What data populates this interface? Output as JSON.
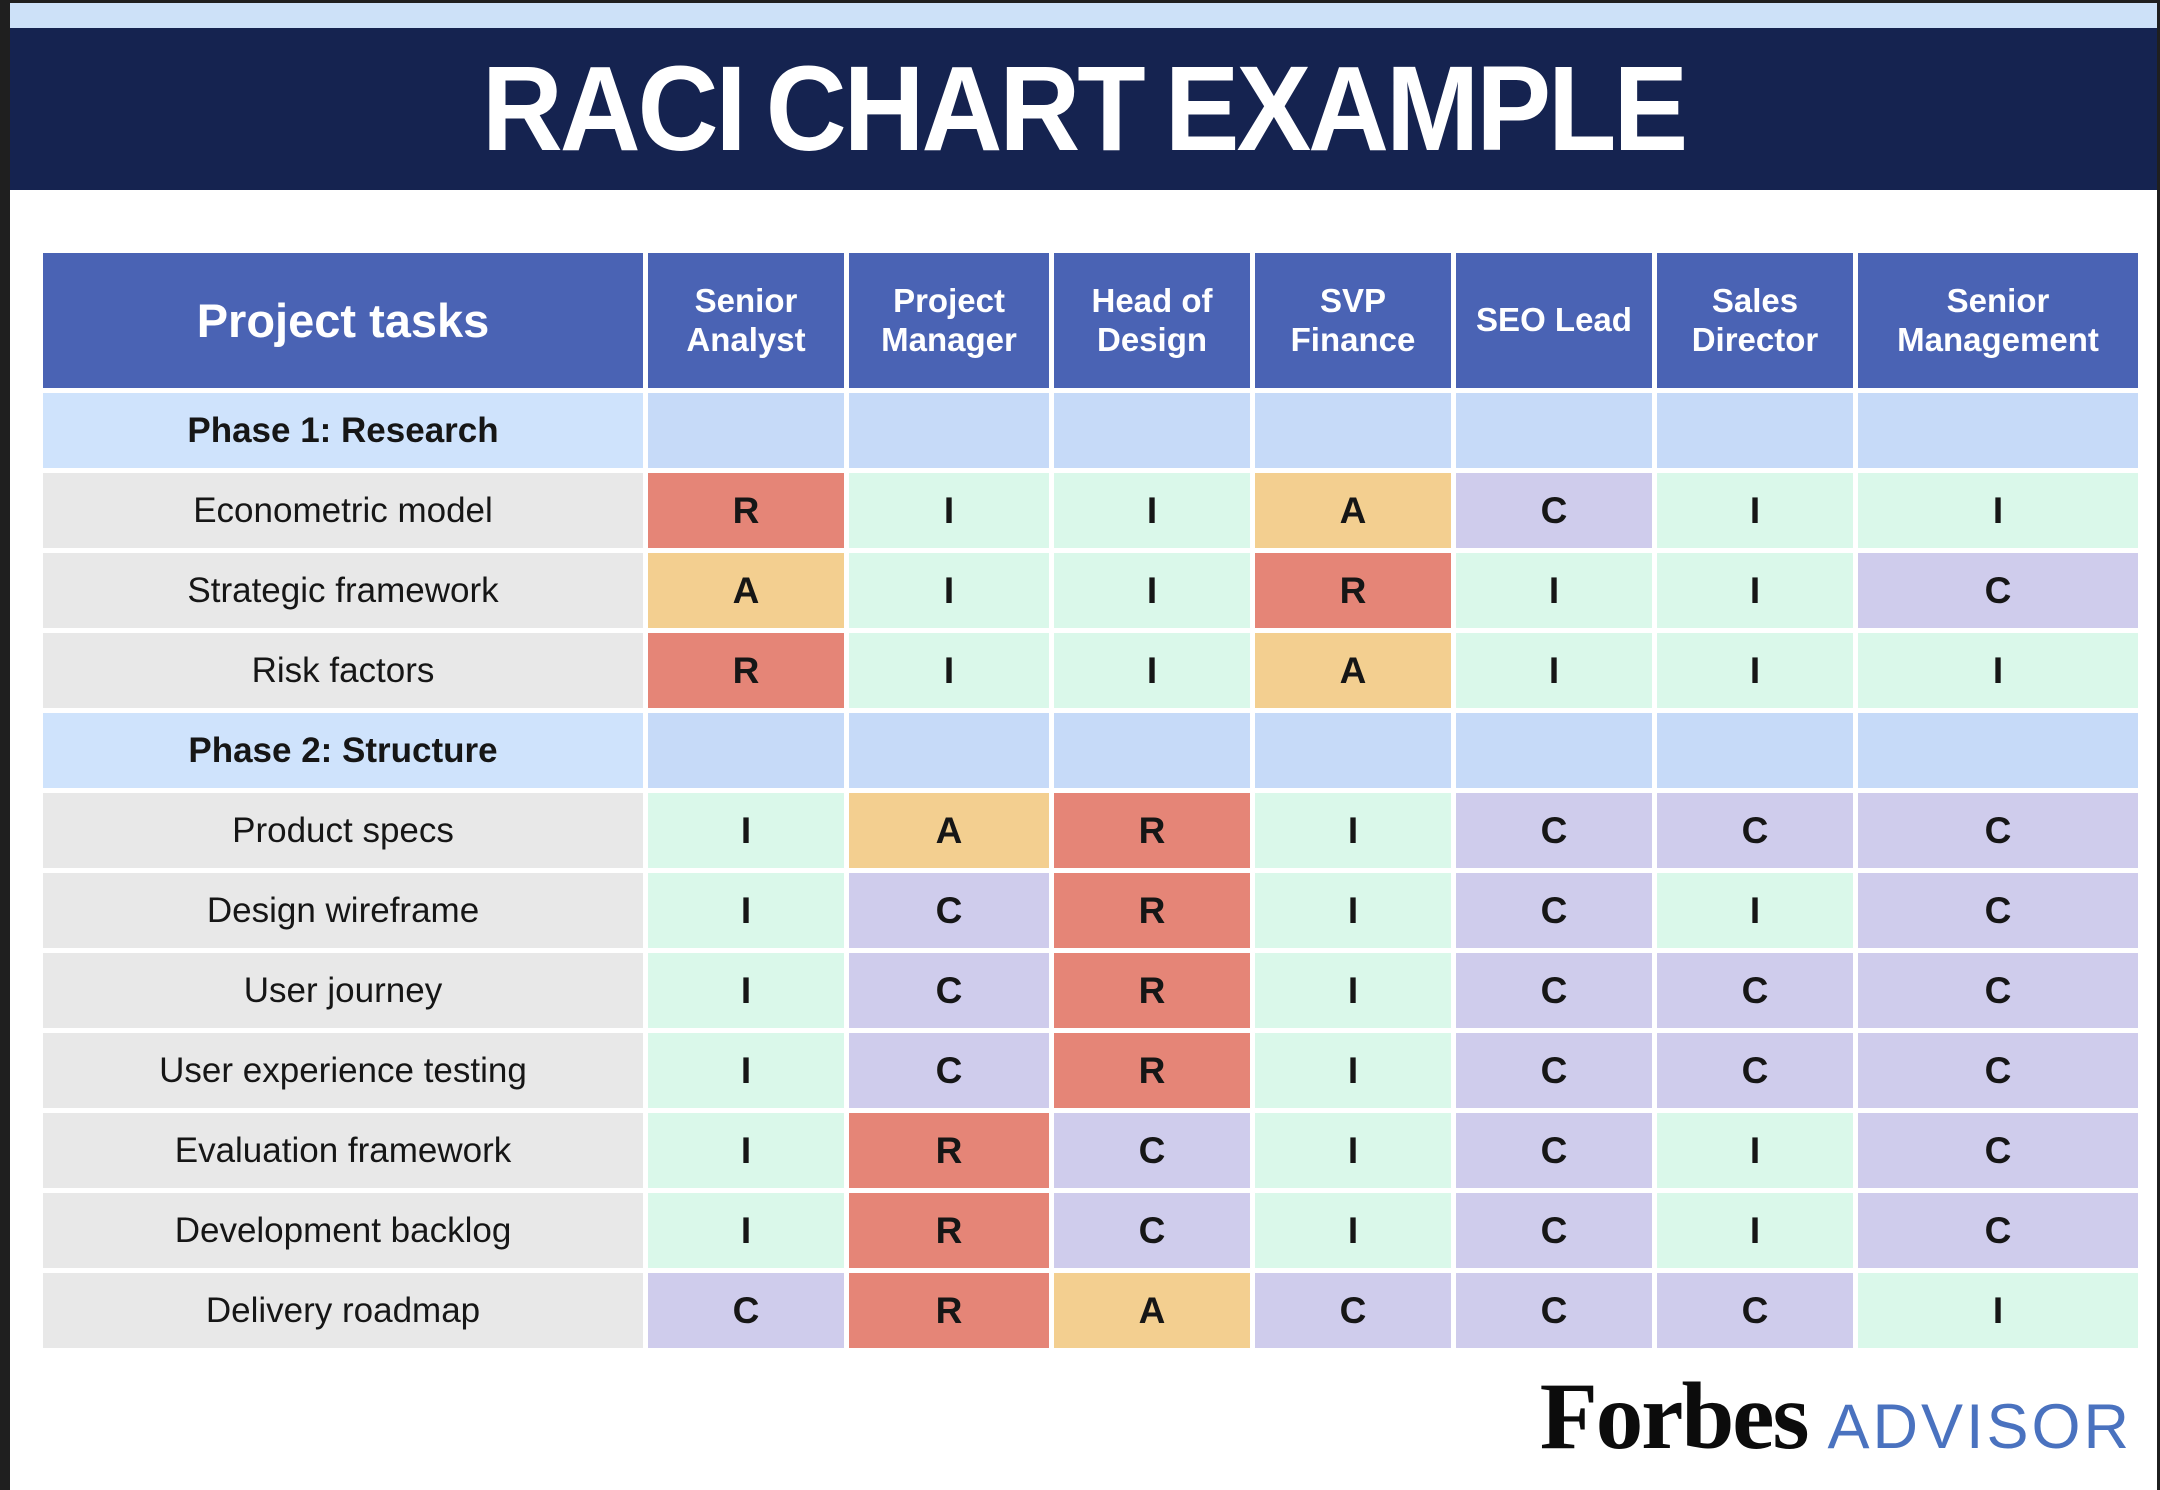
{
  "banner": {
    "title": "RACI CHART EXAMPLE"
  },
  "table": {
    "header": {
      "task_col": "Project tasks",
      "roles": [
        "Senior Analyst",
        "Project Manager",
        "Head of Design",
        "SVP Finance",
        "SEO Lead",
        "Sales Director",
        "Senior Management"
      ]
    },
    "raci_colors": {
      "R": "#e58577",
      "A": "#f3cf90",
      "C": "#cfccec",
      "I": "#daf8ea"
    },
    "rows": [
      {
        "type": "phase",
        "label": "Phase 1: Research"
      },
      {
        "type": "task",
        "label": "Econometric model",
        "values": [
          "R",
          "I",
          "I",
          "A",
          "C",
          "I",
          "I"
        ]
      },
      {
        "type": "task",
        "label": "Strategic framework",
        "values": [
          "A",
          "I",
          "I",
          "R",
          "I",
          "I",
          "C"
        ]
      },
      {
        "type": "task",
        "label": "Risk factors",
        "values": [
          "R",
          "I",
          "I",
          "A",
          "I",
          "I",
          "I"
        ]
      },
      {
        "type": "phase",
        "label": "Phase 2: Structure"
      },
      {
        "type": "task",
        "label": "Product specs",
        "values": [
          "I",
          "A",
          "R",
          "I",
          "C",
          "C",
          "C"
        ]
      },
      {
        "type": "task",
        "label": "Design wireframe",
        "values": [
          "I",
          "C",
          "R",
          "I",
          "C",
          "I",
          "C"
        ]
      },
      {
        "type": "task",
        "label": "User journey",
        "values": [
          "I",
          "C",
          "R",
          "I",
          "C",
          "C",
          "C"
        ]
      },
      {
        "type": "task",
        "label": "User experience testing",
        "values": [
          "I",
          "C",
          "R",
          "I",
          "C",
          "C",
          "C"
        ]
      },
      {
        "type": "task",
        "label": "Evaluation framework",
        "values": [
          "I",
          "R",
          "C",
          "I",
          "C",
          "I",
          "C"
        ]
      },
      {
        "type": "task",
        "label": "Development backlog",
        "values": [
          "I",
          "R",
          "C",
          "I",
          "C",
          "I",
          "C"
        ]
      },
      {
        "type": "task",
        "label": "Delivery roadmap",
        "values": [
          "C",
          "R",
          "A",
          "C",
          "C",
          "C",
          "I"
        ]
      }
    ]
  },
  "chart_data": {
    "type": "table",
    "title": "RACI CHART EXAMPLE",
    "columns": [
      "Project tasks",
      "Senior Analyst",
      "Project Manager",
      "Head of Design",
      "SVP Finance",
      "SEO Lead",
      "Sales Director",
      "Senior Management"
    ],
    "rows": [
      {
        "section": "Phase 1: Research"
      },
      {
        "task": "Econometric model",
        "assignments": [
          "R",
          "I",
          "I",
          "A",
          "C",
          "I",
          "I"
        ]
      },
      {
        "task": "Strategic framework",
        "assignments": [
          "A",
          "I",
          "I",
          "R",
          "I",
          "I",
          "C"
        ]
      },
      {
        "task": "Risk factors",
        "assignments": [
          "R",
          "I",
          "I",
          "A",
          "I",
          "I",
          "I"
        ]
      },
      {
        "section": "Phase 2: Structure"
      },
      {
        "task": "Product specs",
        "assignments": [
          "I",
          "A",
          "R",
          "I",
          "C",
          "C",
          "C"
        ]
      },
      {
        "task": "Design wireframe",
        "assignments": [
          "I",
          "C",
          "R",
          "I",
          "C",
          "I",
          "C"
        ]
      },
      {
        "task": "User journey",
        "assignments": [
          "I",
          "C",
          "R",
          "I",
          "C",
          "C",
          "C"
        ]
      },
      {
        "task": "User experience testing",
        "assignments": [
          "I",
          "C",
          "R",
          "I",
          "C",
          "C",
          "C"
        ]
      },
      {
        "task": "Evaluation framework",
        "assignments": [
          "I",
          "R",
          "C",
          "I",
          "C",
          "I",
          "C"
        ]
      },
      {
        "task": "Development backlog",
        "assignments": [
          "I",
          "R",
          "C",
          "I",
          "C",
          "I",
          "C"
        ]
      },
      {
        "task": "Delivery roadmap",
        "assignments": [
          "C",
          "R",
          "A",
          "C",
          "C",
          "C",
          "I"
        ]
      }
    ],
    "cell_color_coding": {
      "R": "#e58577",
      "A": "#f3cf90",
      "C": "#cfccec",
      "I": "#daf8ea"
    }
  },
  "footer": {
    "brand": "Forbes",
    "brand_suffix": "ADVISOR"
  }
}
